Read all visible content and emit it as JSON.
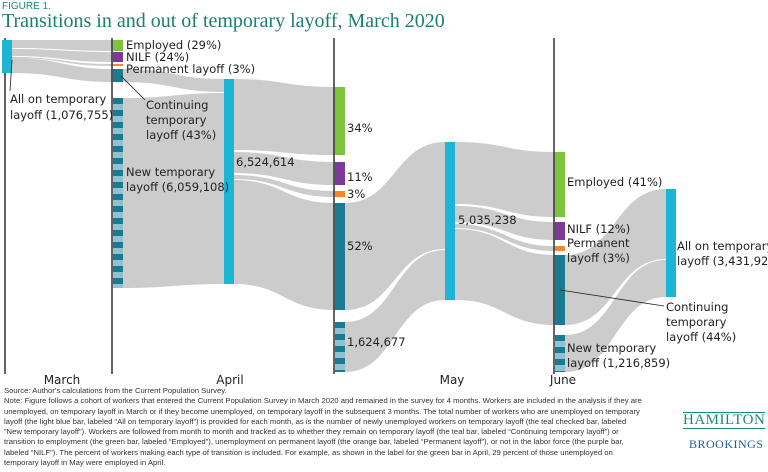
{
  "figure_label": "FIGURE 1.",
  "title": "Transitions in and out of temporary layoff, March 2020",
  "chart_data": {
    "type": "sankey",
    "months": [
      "March",
      "April",
      "May",
      "June"
    ],
    "colors": {
      "all_on_temporary_layoff": "#1bb5d6",
      "employed": "#7dc43c",
      "nilf": "#7b3a96",
      "permanent_layoff": "#f7882a",
      "continuing_temporary_layoff": "#1a7a91",
      "new_temporary_layoff_light": "#90c3d0",
      "flow": "#c8c8c8"
    },
    "march": {
      "all_label_1": "All on temporary",
      "all_label_2": "layoff  (1,076,755)",
      "all_value": 1076755
    },
    "april": {
      "employed": "Employed (29%)",
      "nilf": "NILF (24%)",
      "permanent": "Permanent layoff (3%)",
      "continuing_1": "Continuing",
      "continuing_2": "temporary",
      "continuing_3": "layoff (43%)",
      "new_1": "New temporary",
      "new_2": "layoff (6,059,108)",
      "total": "6,524,614",
      "shares": {
        "employed": 29,
        "nilf": 24,
        "permanent_layoff": 3,
        "continuing": 43
      },
      "new_value": 6059108,
      "total_value": 6524614
    },
    "may": {
      "employed": "34%",
      "nilf": "11%",
      "permanent": "3%",
      "continuing": "52%",
      "new": "1,624,677",
      "total": "5,035,238",
      "shares": {
        "employed": 34,
        "nilf": 11,
        "permanent_layoff": 3,
        "continuing": 52
      },
      "new_value": 1624677,
      "total_value": 5035238
    },
    "june": {
      "employed": "Employed (41%)",
      "nilf": "NILF (12%)",
      "permanent_1": "Permanent",
      "permanent_2": "layoff (3%)",
      "continuing_1": "Continuing",
      "continuing_2": "temporary",
      "continuing_3": "layoff (44%)",
      "new_1": "New temporary",
      "new_2": "layoff (1,216,859)",
      "total_1": "All on temporary",
      "total_2": "layoff (3,431,921)",
      "shares": {
        "employed": 41,
        "nilf": 12,
        "permanent_layoff": 3,
        "continuing": 44
      },
      "new_value": 1216859,
      "total_value": 3431921
    }
  },
  "notes": {
    "source": "Source: Author's calculations from the Current Population Survey.",
    "note": "Note: Figure follows a cohort of workers that entered the Current Population Survey in March 2020 and remained in the survey for 4 months.  Workers are included in the analysis if they are unemployed, on temporary layoff in March or if they become unemployed, on temporary layoff in the subsequent 3 months. The total number of workers who are unemployed on temporary layoff (the light blue bar, labeled “All on temporary layoff”) is provided for each month, as is the number of newly unemployed workers on temporary layoff (the teal checked bar, labeled “New temporary layoff”).  Workers are followed from month to month and tracked as to whether they remain on temporary layoff (the teal bar, labeled “Continuing temporary layoff”) or transition to employment (the green bar, labeled “Employed”), unemployment on permanent layoff (the orange bar, labeled “Permanent layoff”), or not in the labor force (the purple bar, labeled “NILF”).  The percent of workers making each type of transition is included. For example, as shown in the label for the green bar in April, 29 percent of those unemployed on temporary layoff in May were employed in April."
  },
  "logo": {
    "hamilton": "HAMILTON",
    "brookings": "BROOKINGS"
  }
}
